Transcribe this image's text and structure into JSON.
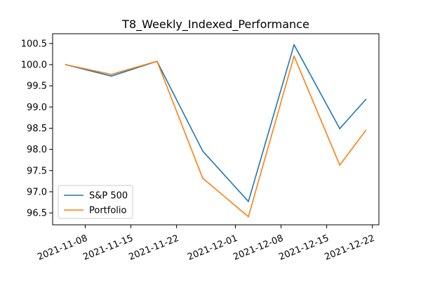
{
  "chart_data": {
    "type": "line",
    "title": "T8_Weekly_Indexed_Performance",
    "xlabel": "",
    "ylabel": "",
    "x": [
      "2021-11-05",
      "2021-11-12",
      "2021-11-19",
      "2021-11-26",
      "2021-12-03",
      "2021-12-10",
      "2021-12-17",
      "2021-12-21"
    ],
    "xlim": [
      "2021-11-03",
      "2021-12-23"
    ],
    "ylim": [
      96.22,
      100.73
    ],
    "x_ticks": [
      "2021-11-08",
      "2021-11-15",
      "2021-11-22",
      "2021-12-01",
      "2021-12-08",
      "2021-12-15",
      "2021-12-22"
    ],
    "y_ticks": [
      96.5,
      97.0,
      97.5,
      98.0,
      98.5,
      99.0,
      99.5,
      100.0,
      100.5
    ],
    "y_tick_labels": [
      "96.5",
      "97.0",
      "97.5",
      "98.0",
      "98.5",
      "99.0",
      "99.5",
      "100.0",
      "100.5"
    ],
    "grid": false,
    "legend_position": "lower-left",
    "series": [
      {
        "name": "S&P 500",
        "color": "#1f77b4",
        "values": [
          100.0,
          99.73,
          100.08,
          97.96,
          96.77,
          100.47,
          98.49,
          99.18
        ]
      },
      {
        "name": "Portfolio",
        "color": "#ff7f0e",
        "values": [
          100.0,
          99.77,
          100.08,
          97.32,
          96.41,
          100.2,
          97.63,
          98.45
        ]
      }
    ]
  }
}
